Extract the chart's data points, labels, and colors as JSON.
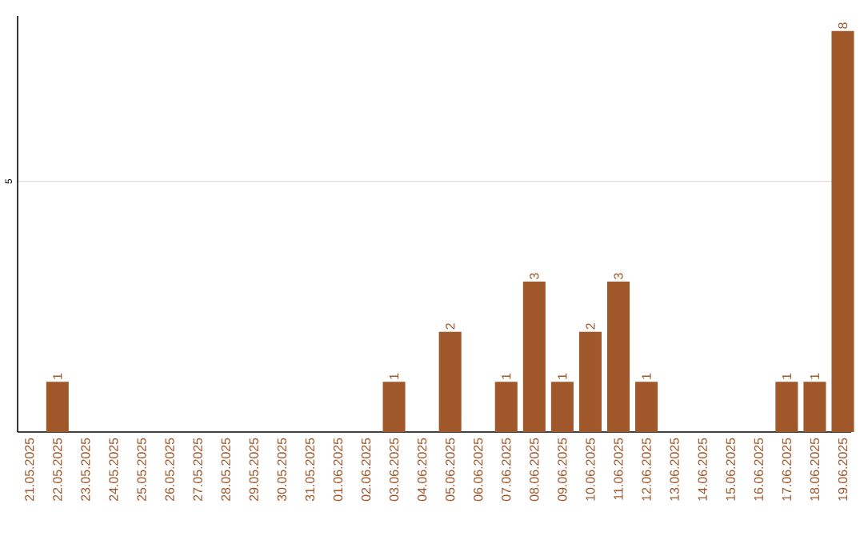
{
  "chart_data": {
    "type": "bar",
    "categories": [
      "21.05.2025",
      "22.05.2025",
      "23.05.2025",
      "24.05.2025",
      "25.05.2025",
      "26.05.2025",
      "27.05.2025",
      "28.05.2025",
      "29.05.2025",
      "30.05.2025",
      "31.05.2025",
      "01.06.2025",
      "02.06.2025",
      "03.06.2025",
      "04.06.2025",
      "05.06.2025",
      "06.06.2025",
      "07.06.2025",
      "08.06.2025",
      "09.06.2025",
      "10.06.2025",
      "11.06.2025",
      "12.06.2025",
      "13.06.2025",
      "14.06.2025",
      "15.06.2025",
      "16.06.2025",
      "17.06.2025",
      "18.06.2025",
      "19.06.2025"
    ],
    "values": [
      0,
      1,
      0,
      0,
      0,
      0,
      0,
      0,
      0,
      0,
      0,
      0,
      0,
      1,
      0,
      2,
      0,
      1,
      3,
      1,
      2,
      3,
      1,
      0,
      0,
      0,
      0,
      1,
      1,
      8
    ],
    "value_labels": [
      null,
      "1",
      null,
      null,
      null,
      null,
      null,
      null,
      null,
      null,
      null,
      null,
      null,
      "1",
      null,
      "2",
      null,
      "1",
      "3",
      "1",
      "2",
      "3",
      "1",
      null,
      null,
      null,
      null,
      "1",
      "1",
      "8"
    ],
    "color": "#a0572a",
    "ylim": [
      0,
      8.3
    ],
    "yticks": [
      5
    ],
    "grid": "y"
  }
}
